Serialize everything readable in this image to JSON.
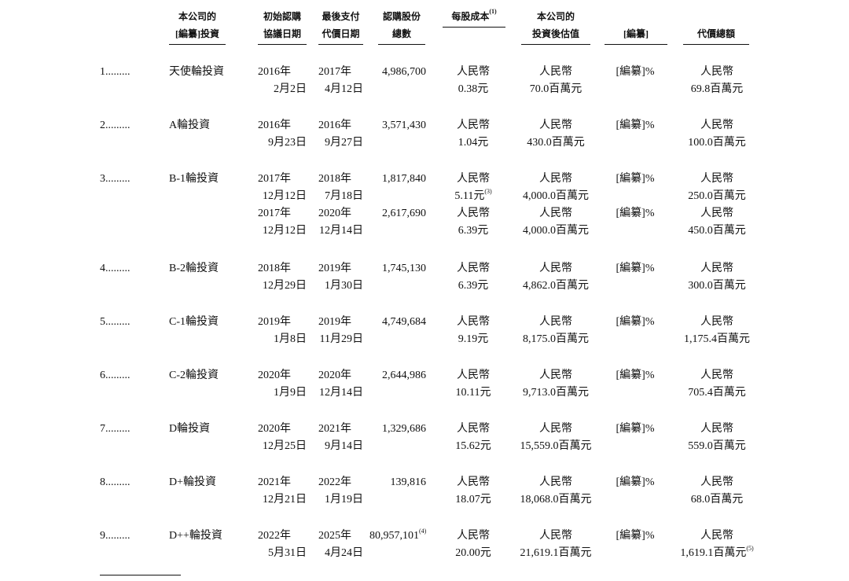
{
  "headers": {
    "investment": [
      "本公司的",
      "[編纂]投資"
    ],
    "agreement_date": [
      "初始認購",
      "協議日期"
    ],
    "payment_date": [
      "最後支付",
      "代價日期"
    ],
    "shares": [
      "認購股份",
      "總數"
    ],
    "cost": [
      "",
      "每股成本"
    ],
    "cost_note": "(1)",
    "valuation": [
      "本公司的",
      "投資後估值"
    ],
    "redacted": [
      "",
      "[編纂]"
    ],
    "total": [
      "",
      "代價總額"
    ]
  },
  "rows": [
    {
      "num": "1.........",
      "name": "天使輪投資",
      "subs": [
        {
          "d1": [
            "2016年",
            "2月2日"
          ],
          "d2": [
            "2017年",
            "4月12日"
          ],
          "shares": "4,986,700",
          "shares_note": "",
          "cost": [
            "人民幣",
            "0.38元"
          ],
          "cost_note": "",
          "val": [
            "人民幣",
            "70.0百萬元"
          ],
          "pct": "[編纂]%",
          "total": [
            "人民幣",
            "69.8百萬元"
          ],
          "total_note": ""
        }
      ]
    },
    {
      "num": "2.........",
      "name": "A輪投資",
      "subs": [
        {
          "d1": [
            "2016年",
            "9月23日"
          ],
          "d2": [
            "2016年",
            "9月27日"
          ],
          "shares": "3,571,430",
          "shares_note": "",
          "cost": [
            "人民幣",
            "1.04元"
          ],
          "cost_note": "",
          "val": [
            "人民幣",
            "430.0百萬元"
          ],
          "pct": "[編纂]%",
          "total": [
            "人民幣",
            "100.0百萬元"
          ],
          "total_note": ""
        }
      ]
    },
    {
      "num": "3.........",
      "name": "B-1輪投資",
      "subs": [
        {
          "d1": [
            "2017年",
            "12月12日"
          ],
          "d2": [
            "2018年",
            "7月18日"
          ],
          "shares": "1,817,840",
          "shares_note": "",
          "cost": [
            "人民幣",
            "5.11元"
          ],
          "cost_note": "(3)",
          "val": [
            "人民幣",
            "4,000.0百萬元"
          ],
          "pct": "[編纂]%",
          "total": [
            "人民幣",
            "250.0百萬元"
          ],
          "total_note": ""
        },
        {
          "d1": [
            "2017年",
            "12月12日"
          ],
          "d2": [
            "2020年",
            "12月14日"
          ],
          "shares": "2,617,690",
          "shares_note": "",
          "cost": [
            "人民幣",
            "6.39元"
          ],
          "cost_note": "",
          "val": [
            "人民幣",
            "4,000.0百萬元"
          ],
          "pct": "[編纂]%",
          "total": [
            "人民幣",
            "450.0百萬元"
          ],
          "total_note": ""
        }
      ]
    },
    {
      "num": "4.........",
      "name": "B-2輪投資",
      "subs": [
        {
          "d1": [
            "2018年",
            "12月29日"
          ],
          "d2": [
            "2019年",
            "1月30日"
          ],
          "shares": "1,745,130",
          "shares_note": "",
          "cost": [
            "人民幣",
            "6.39元"
          ],
          "cost_note": "",
          "val": [
            "人民幣",
            "4,862.0百萬元"
          ],
          "pct": "[編纂]%",
          "total": [
            "人民幣",
            "300.0百萬元"
          ],
          "total_note": ""
        }
      ]
    },
    {
      "num": "5.........",
      "name": "C-1輪投資",
      "subs": [
        {
          "d1": [
            "2019年",
            "1月8日"
          ],
          "d2": [
            "2019年",
            "11月29日"
          ],
          "shares": "4,749,684",
          "shares_note": "",
          "cost": [
            "人民幣",
            "9.19元"
          ],
          "cost_note": "",
          "val": [
            "人民幣",
            "8,175.0百萬元"
          ],
          "pct": "[編纂]%",
          "total": [
            "人民幣",
            "1,175.4百萬元"
          ],
          "total_note": ""
        }
      ]
    },
    {
      "num": "6.........",
      "name": "C-2輪投資",
      "subs": [
        {
          "d1": [
            "2020年",
            "1月9日"
          ],
          "d2": [
            "2020年",
            "12月14日"
          ],
          "shares": "2,644,986",
          "shares_note": "",
          "cost": [
            "人民幣",
            "10.11元"
          ],
          "cost_note": "",
          "val": [
            "人民幣",
            "9,713.0百萬元"
          ],
          "pct": "[編纂]%",
          "total": [
            "人民幣",
            "705.4百萬元"
          ],
          "total_note": ""
        }
      ]
    },
    {
      "num": "7.........",
      "name": "D輪投資",
      "subs": [
        {
          "d1": [
            "2020年",
            "12月25日"
          ],
          "d2": [
            "2021年",
            "9月14日"
          ],
          "shares": "1,329,686",
          "shares_note": "",
          "cost": [
            "人民幣",
            "15.62元"
          ],
          "cost_note": "",
          "val": [
            "人民幣",
            "15,559.0百萬元"
          ],
          "pct": "[編纂]%",
          "total": [
            "人民幣",
            "559.0百萬元"
          ],
          "total_note": ""
        }
      ]
    },
    {
      "num": "8.........",
      "name": "D+輪投資",
      "subs": [
        {
          "d1": [
            "2021年",
            "12月21日"
          ],
          "d2": [
            "2022年",
            "1月19日"
          ],
          "shares": "139,816",
          "shares_note": "",
          "cost": [
            "人民幣",
            "18.07元"
          ],
          "cost_note": "",
          "val": [
            "人民幣",
            "18,068.0百萬元"
          ],
          "pct": "[編纂]%",
          "total": [
            "人民幣",
            "68.0百萬元"
          ],
          "total_note": ""
        }
      ]
    },
    {
      "num": "9.........",
      "name": "D++輪投資",
      "subs": [
        {
          "d1": [
            "2022年",
            "5月31日"
          ],
          "d2": [
            "2025年",
            "4月24日"
          ],
          "shares": "80,957,101",
          "shares_note": "(4)",
          "cost": [
            "人民幣",
            "20.00元"
          ],
          "cost_note": "",
          "val": [
            "人民幣",
            "21,619.1百萬元"
          ],
          "pct": "[編纂]%",
          "total": [
            "人民幣",
            "1,619.1百萬元"
          ],
          "total_note": "(5)"
        }
      ]
    }
  ]
}
